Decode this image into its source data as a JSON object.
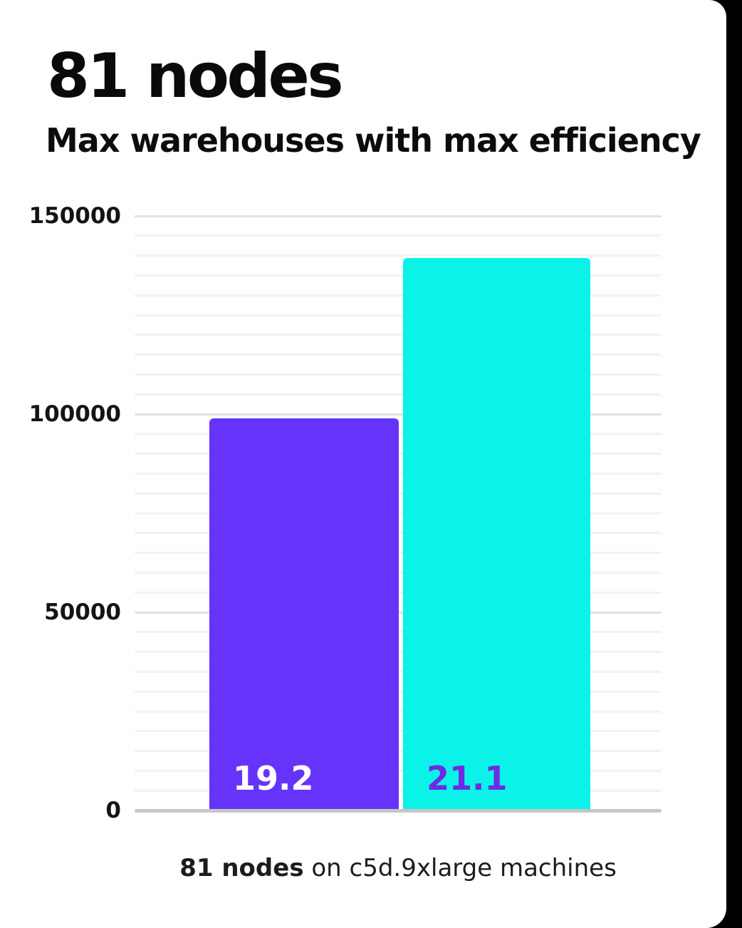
{
  "page": {
    "card_background": "#FFFFFF",
    "page_edge_color": "#000000"
  },
  "header": {
    "title": "81 nodes",
    "subtitle": "Max warehouses with max efficiency"
  },
  "chart_data": {
    "type": "bar",
    "title": "81 nodes",
    "subtitle": "Max warehouses with max efficiency",
    "categories": [
      "19.2",
      "21.1"
    ],
    "values": [
      99500,
      140000
    ],
    "bar_labels": [
      "19.2",
      "21.1"
    ],
    "bar_colors": [
      "#6633FA",
      "#0BF2E9"
    ],
    "bar_label_colors": [
      "#FFFFFF",
      "#6D2BE3"
    ],
    "xlabel": "",
    "ylabel": "",
    "ylim": [
      0,
      150000
    ],
    "yticks": [
      0,
      50000,
      100000,
      150000
    ],
    "ytick_labels": [
      "0",
      "50000",
      "100000",
      "150000"
    ],
    "minor_grid_step": 5000,
    "grid": "horizontal-only",
    "legend": "none",
    "annotation": "81 nodes on c5d.9xlarge machines",
    "grid_color_major": "#E2E2E2",
    "grid_color_minor": "#F2F2F2",
    "axis_line_color": "#C6C6C6"
  },
  "caption": {
    "bold": "81 nodes",
    "rest": " on c5d.9xlarge machines"
  }
}
